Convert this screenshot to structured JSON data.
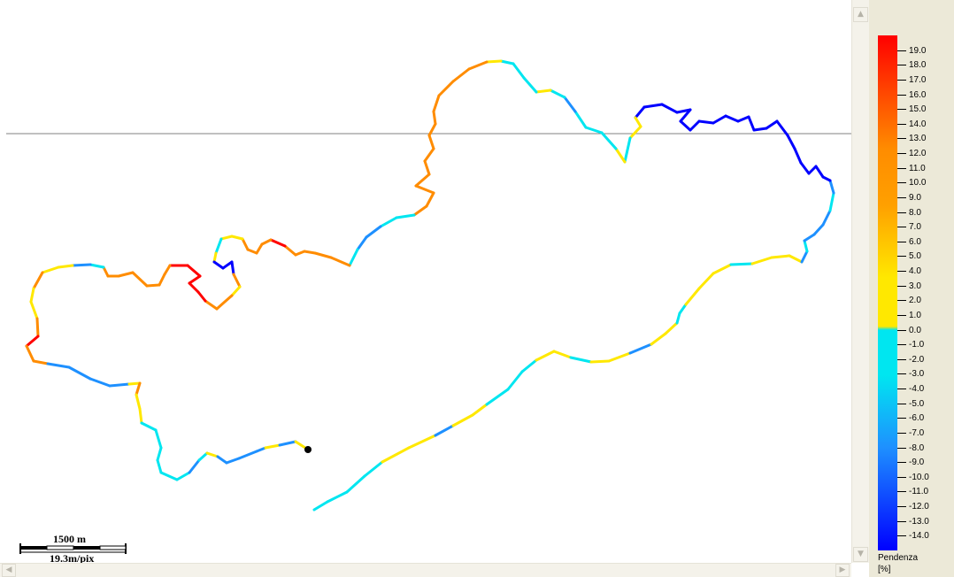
{
  "legend": {
    "title": "Pendenza",
    "unit": "[%]",
    "ticks": [
      "19.0",
      "18.0",
      "17.0",
      "16.0",
      "15.0",
      "14.0",
      "13.0",
      "12.0",
      "11.0",
      "10.0",
      "9.0",
      "8.0",
      "7.0",
      "6.0",
      "5.0",
      "4.0",
      "3.0",
      "2.0",
      "1.0",
      "0.0",
      "-1.0",
      "-2.0",
      "-3.0",
      "-4.0",
      "-5.0",
      "-6.0",
      "-7.0",
      "-8.0",
      "-9.0",
      "-10.0",
      "-11.0",
      "-12.0",
      "-13.0",
      "-14.0"
    ],
    "max": 20,
    "min": -15,
    "colors": {
      "steep_up": "#ff0000",
      "up": "#ff8c00",
      "gentle_up": "#ffe800",
      "gentle_down": "#00e6f0",
      "down": "#1e90ff",
      "steep_down": "#0000ff"
    }
  },
  "scale_bar": {
    "distance_label": "1500 m",
    "resolution_label": "19.3m/pix"
  },
  "map": {
    "marker_color": "#000000",
    "reference_line_color": "#808080"
  }
}
